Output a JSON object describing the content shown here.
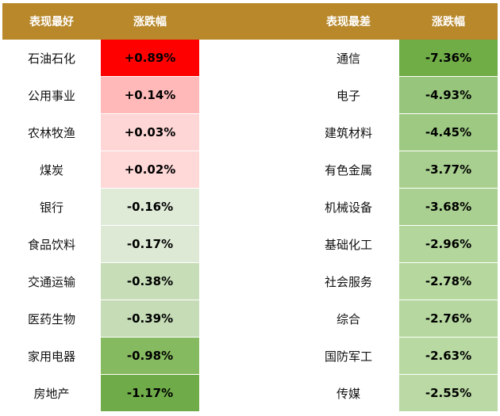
{
  "chart_data": {
    "type": "table",
    "headers": {
      "best_name": "表现最好",
      "best_value": "涨跌幅",
      "worst_name": "表现最差",
      "worst_value": "涨跌幅"
    },
    "best": [
      {
        "name": "石油石化",
        "value": "+0.89%",
        "color": "#ff0000"
      },
      {
        "name": "公用事业",
        "value": "+0.14%",
        "color": "#ffb9b9"
      },
      {
        "name": "农林牧渔",
        "value": "+0.03%",
        "color": "#ffd6d6"
      },
      {
        "name": "煤炭",
        "value": "+0.02%",
        "color": "#ffd8d8"
      },
      {
        "name": "银行",
        "value": "-0.16%",
        "color": "#dfead7"
      },
      {
        "name": "食品饮料",
        "value": "-0.17%",
        "color": "#dde9d5"
      },
      {
        "name": "交通运输",
        "value": "-0.38%",
        "color": "#c6ddb8"
      },
      {
        "name": "医药生物",
        "value": "-0.39%",
        "color": "#c5dcb6"
      },
      {
        "name": "家用电器",
        "value": "-0.98%",
        "color": "#86ba60"
      },
      {
        "name": "房地产",
        "value": "-1.17%",
        "color": "#6fac49"
      }
    ],
    "worst": [
      {
        "name": "通信",
        "value": "-7.36%",
        "color": "#70ad47"
      },
      {
        "name": "电子",
        "value": "-4.93%",
        "color": "#96c57b"
      },
      {
        "name": "建筑材料",
        "value": "-4.45%",
        "color": "#9dc982"
      },
      {
        "name": "有色金属",
        "value": "-3.77%",
        "color": "#a8cf8f"
      },
      {
        "name": "机械设备",
        "value": "-3.68%",
        "color": "#a9d090"
      },
      {
        "name": "基础化工",
        "value": "-2.96%",
        "color": "#b3d69c"
      },
      {
        "name": "社会服务",
        "value": "-2.78%",
        "color": "#b6d89f"
      },
      {
        "name": "综合",
        "value": "-2.76%",
        "color": "#b6d8a0"
      },
      {
        "name": "国防军工",
        "value": "-2.63%",
        "color": "#b8d9a2"
      },
      {
        "name": "传媒",
        "value": "-2.55%",
        "color": "#bad9a4"
      }
    ]
  }
}
